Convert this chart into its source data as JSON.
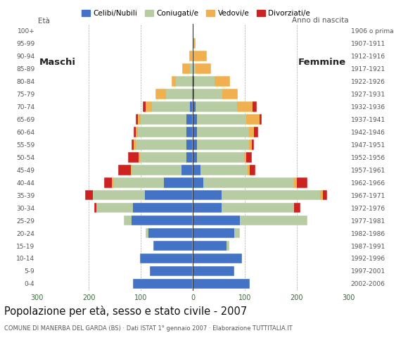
{
  "age_groups": [
    "0-4",
    "5-9",
    "10-14",
    "15-19",
    "20-24",
    "25-29",
    "30-34",
    "35-39",
    "40-44",
    "45-49",
    "50-54",
    "55-59",
    "60-64",
    "65-69",
    "70-74",
    "75-79",
    "80-84",
    "85-89",
    "90-94",
    "95-99",
    "100+"
  ],
  "birth_years": [
    "2002-2006",
    "1997-2001",
    "1992-1996",
    "1987-1991",
    "1982-1986",
    "1977-1981",
    "1972-1976",
    "1967-1971",
    "1962-1966",
    "1957-1961",
    "1952-1956",
    "1947-1951",
    "1942-1946",
    "1937-1941",
    "1932-1936",
    "1927-1931",
    "1922-1926",
    "1917-1921",
    "1912-1916",
    "1907-1911",
    "1906 o prima"
  ],
  "male": {
    "celibi": [
      115,
      82,
      102,
      76,
      85,
      118,
      115,
      92,
      55,
      22,
      12,
      12,
      12,
      12,
      5,
      2,
      2,
      0,
      0,
      0,
      0
    ],
    "coniugati": [
      0,
      0,
      0,
      0,
      5,
      15,
      70,
      100,
      98,
      95,
      90,
      98,
      94,
      88,
      74,
      50,
      30,
      5,
      2,
      0,
      0
    ],
    "vedovi": [
      0,
      0,
      0,
      0,
      0,
      0,
      0,
      0,
      2,
      2,
      2,
      3,
      3,
      5,
      12,
      20,
      8,
      15,
      5,
      0,
      0
    ],
    "divorziati": [
      0,
      0,
      0,
      0,
      0,
      0,
      5,
      15,
      15,
      25,
      20,
      5,
      5,
      5,
      5,
      0,
      0,
      0,
      0,
      0,
      0
    ]
  },
  "female": {
    "nubili": [
      110,
      80,
      95,
      65,
      80,
      90,
      55,
      55,
      20,
      15,
      8,
      8,
      8,
      8,
      5,
      2,
      2,
      0,
      0,
      0,
      0
    ],
    "coniugate": [
      0,
      0,
      0,
      5,
      10,
      130,
      140,
      190,
      175,
      90,
      90,
      100,
      100,
      95,
      80,
      55,
      40,
      5,
      2,
      0,
      0
    ],
    "vedove": [
      0,
      0,
      0,
      0,
      0,
      0,
      0,
      5,
      5,
      5,
      5,
      5,
      10,
      25,
      30,
      30,
      30,
      30,
      25,
      5,
      0
    ],
    "divorziate": [
      0,
      0,
      0,
      0,
      0,
      0,
      12,
      8,
      20,
      10,
      10,
      5,
      8,
      5,
      8,
      0,
      0,
      0,
      0,
      0,
      0
    ]
  },
  "colors": {
    "celibi": "#4472c4",
    "coniugati": "#b8cca4",
    "vedovi": "#f0b050",
    "divorziati": "#cc2222"
  },
  "xlim": 300,
  "title": "Popolazione per età, sesso e stato civile - 2007",
  "subtitle": "COMUNE DI MANERBA DEL GARDA (BS) · Dati ISTAT 1° gennaio 2007 · Elaborazione TUTTITALIA.IT",
  "ylabel_left": "Età",
  "ylabel_right": "Anno di nascita",
  "legend_labels": [
    "Celibi/Nubili",
    "Coniugati/e",
    "Vedovi/e",
    "Divorziati/e"
  ],
  "background_color": "#ffffff",
  "maschi_label": "Maschi",
  "femmine_label": "Femmine"
}
